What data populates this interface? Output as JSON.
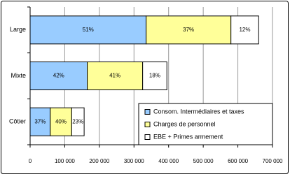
{
  "chart_data": {
    "type": "stacked-bar-horizontal",
    "categories": [
      "Large",
      "Mixte",
      "Côtier"
    ],
    "series": [
      {
        "name": "Consom. Intermédiaires et taxes",
        "color": "#99ccff",
        "values": [
          335000,
          165000,
          58000
        ],
        "shares": [
          51,
          42,
          37
        ],
        "share_labels": [
          "51%",
          "42%",
          "37%"
        ]
      },
      {
        "name": "Charges de personnel",
        "color": "#ffff99",
        "values": [
          245000,
          160000,
          62000
        ],
        "shares": [
          37,
          41,
          40
        ],
        "share_labels": [
          "37%",
          "41%",
          "40%"
        ]
      },
      {
        "name": "EBE + Primes armement",
        "color": "#ffffff",
        "values": [
          80000,
          70000,
          36000
        ],
        "shares": [
          12,
          18,
          23
        ],
        "share_labels": [
          "12%",
          "18%",
          "23%"
        ]
      }
    ],
    "xlim": [
      0,
      700000
    ],
    "xticks": [
      0,
      {
        "value": 100000,
        "label": "100 000"
      },
      {
        "value": 200000,
        "label": "200 000"
      },
      {
        "value": 300000,
        "label": "300 000"
      },
      {
        "value": 400000,
        "label": "400 000"
      },
      {
        "value": 500000,
        "label": "500 000"
      },
      {
        "value": 600000,
        "label": "600 000"
      },
      {
        "value": 700000,
        "label": "700 000"
      }
    ],
    "grid": true,
    "legend": "lower-right"
  }
}
